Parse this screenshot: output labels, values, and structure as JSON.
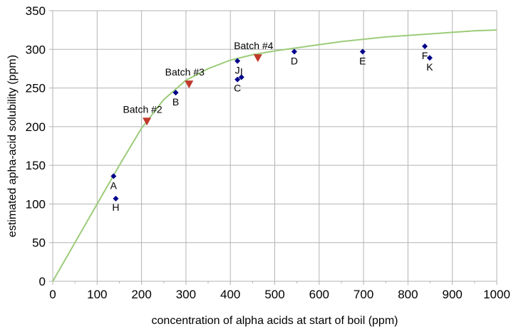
{
  "chart_data": {
    "type": "scatter",
    "title": "",
    "xlabel": "concentration of alpha acids at start of boil (ppm)",
    "ylabel": "estimated apha-acid solubility (ppm)",
    "xlim": [
      0,
      1000
    ],
    "ylim": [
      0,
      350
    ],
    "x_ticks": [
      0,
      100,
      200,
      300,
      400,
      500,
      600,
      700,
      800,
      900,
      1000
    ],
    "y_ticks": [
      0,
      50,
      100,
      150,
      200,
      250,
      300,
      350
    ],
    "grid": true,
    "legend": "none",
    "series": [
      {
        "name": "",
        "type": "scatter",
        "marker": "diamond",
        "color": "#00008b",
        "points": [
          {
            "label": "A",
            "x": 137,
            "y": 136
          },
          {
            "label": "H",
            "x": 142,
            "y": 107
          },
          {
            "label": "B",
            "x": 277,
            "y": 244
          },
          {
            "label": "J",
            "x": 416,
            "y": 285
          },
          {
            "label": "C",
            "x": 416,
            "y": 261
          },
          {
            "label": "I",
            "x": 425,
            "y": 264
          },
          {
            "label": "D",
            "x": 544,
            "y": 297
          },
          {
            "label": "E",
            "x": 698,
            "y": 297
          },
          {
            "label": "F",
            "x": 838,
            "y": 304
          },
          {
            "label": "K",
            "x": 849,
            "y": 289
          }
        ]
      },
      {
        "name": "",
        "type": "scatter",
        "marker": "triangle-down",
        "color": "#c0392b",
        "points": [
          {
            "label": "Batch #2",
            "x": 212,
            "y": 207
          },
          {
            "label": "Batch #3",
            "x": 307,
            "y": 255
          },
          {
            "label": "Batch #4",
            "x": 462,
            "y": 289
          }
        ]
      },
      {
        "name": "",
        "type": "line",
        "color": "#9ccc7a",
        "x": [
          0,
          50,
          100,
          150,
          200,
          250,
          300,
          350,
          400,
          450,
          500,
          550,
          600,
          650,
          700,
          750,
          800,
          850,
          900,
          950,
          1000
        ],
        "y": [
          0,
          50,
          100,
          150,
          198,
          235,
          260,
          275,
          286,
          293,
          298,
          302,
          306,
          310,
          313,
          316,
          318,
          320,
          322,
          324,
          325
        ]
      }
    ]
  }
}
